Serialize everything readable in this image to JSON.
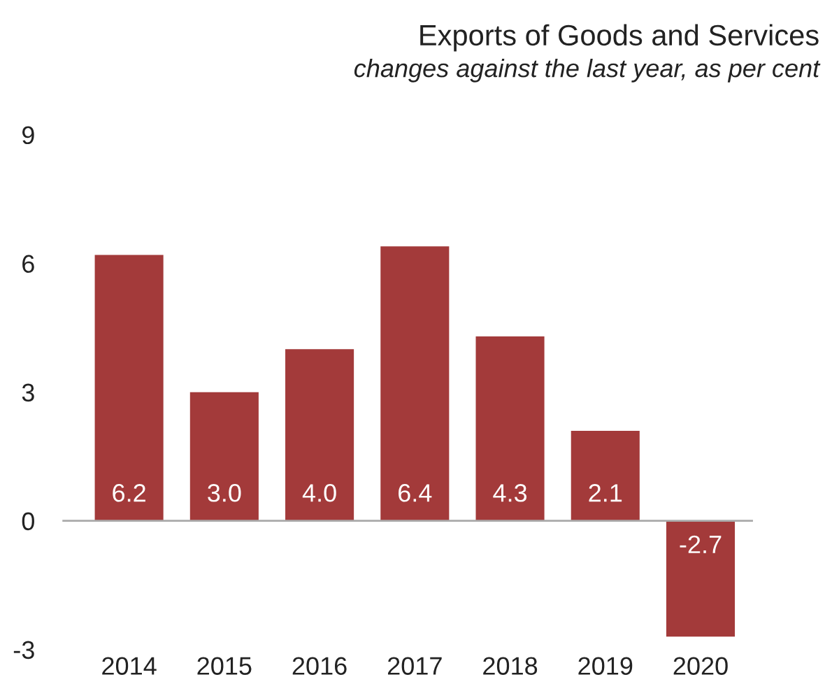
{
  "chart_data": {
    "type": "bar",
    "title": "Exports of Goods and Services",
    "subtitle": "changes against the last year, as per cent",
    "categories": [
      "2014",
      "2015",
      "2016",
      "2017",
      "2018",
      "2019",
      "2020"
    ],
    "values": [
      6.2,
      3.0,
      4.0,
      6.4,
      4.3,
      2.1,
      -2.7
    ],
    "color": "#a33a3a",
    "ylim": [
      -3,
      9
    ],
    "yticks": [
      -3,
      0,
      3,
      6,
      9
    ],
    "grid": false,
    "value_labels": [
      "6.2",
      "3.0",
      "4.0",
      "6.4",
      "4.3",
      "2.1",
      "-2.7"
    ],
    "ref_lines": [
      {
        "axis": "y",
        "value": 0,
        "color": "#aaaaaa"
      }
    ]
  }
}
